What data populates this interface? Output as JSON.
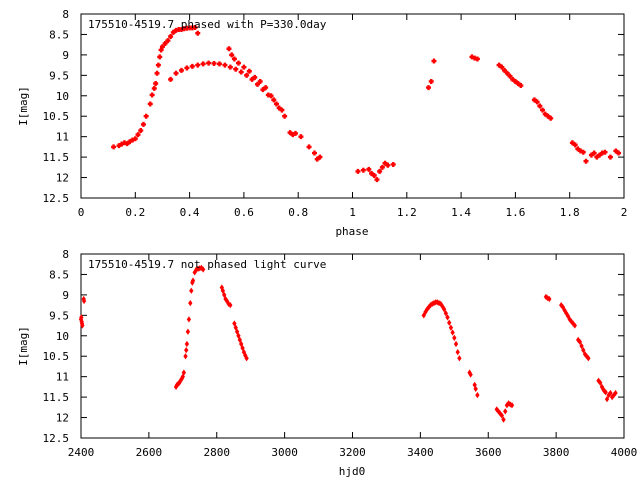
{
  "chart_data": [
    {
      "type": "scatter",
      "title": "175510-4519.7 phased with P=330.0day",
      "xlabel": "phase",
      "ylabel": "I[mag]",
      "xlim": [
        0,
        2
      ],
      "ylim": [
        8,
        12.5
      ],
      "y_inverted": true,
      "grid": false,
      "marker_color": "#ff0000",
      "marker_shape": "plus-dot",
      "x_ticks": [
        "0",
        "0.2",
        "0.4",
        "0.6",
        "0.8",
        "1",
        "1.2",
        "1.4",
        "1.6",
        "1.8",
        "2"
      ],
      "y_ticks": [
        "8",
        "8.5",
        "9",
        "9.5",
        "10",
        "10.5",
        "11",
        "11.5",
        "12",
        "12.5"
      ],
      "series": [
        {
          "points": [
            [
              0.12,
              11.25
            ],
            [
              0.14,
              11.22
            ],
            [
              0.15,
              11.18
            ],
            [
              0.16,
              11.15
            ],
            [
              0.17,
              11.17
            ],
            [
              0.18,
              11.12
            ],
            [
              0.19,
              11.08
            ],
            [
              0.2,
              11.05
            ],
            [
              0.21,
              10.95
            ],
            [
              0.22,
              10.85
            ],
            [
              0.23,
              10.7
            ],
            [
              0.24,
              10.5
            ],
            [
              0.255,
              10.2
            ],
            [
              0.262,
              9.98
            ],
            [
              0.27,
              9.82
            ],
            [
              0.275,
              9.7
            ],
            [
              0.28,
              9.45
            ],
            [
              0.285,
              9.25
            ],
            [
              0.29,
              9.05
            ],
            [
              0.295,
              8.88
            ],
            [
              0.3,
              8.8
            ],
            [
              0.31,
              8.72
            ],
            [
              0.32,
              8.65
            ],
            [
              0.33,
              8.55
            ],
            [
              0.34,
              8.45
            ],
            [
              0.35,
              8.4
            ],
            [
              0.36,
              8.38
            ],
            [
              0.37,
              8.38
            ],
            [
              0.38,
              8.36
            ],
            [
              0.39,
              8.35
            ],
            [
              0.4,
              8.34
            ],
            [
              0.41,
              8.34
            ],
            [
              0.42,
              8.33
            ],
            [
              0.43,
              8.47
            ],
            [
              0.33,
              9.6
            ],
            [
              0.35,
              9.45
            ],
            [
              0.37,
              9.38
            ],
            [
              0.39,
              9.32
            ],
            [
              0.41,
              9.28
            ],
            [
              0.43,
              9.25
            ],
            [
              0.45,
              9.22
            ],
            [
              0.47,
              9.2
            ],
            [
              0.49,
              9.21
            ],
            [
              0.51,
              9.22
            ],
            [
              0.53,
              9.25
            ],
            [
              0.55,
              9.3
            ],
            [
              0.57,
              9.35
            ],
            [
              0.59,
              9.42
            ],
            [
              0.61,
              9.5
            ],
            [
              0.63,
              9.6
            ],
            [
              0.65,
              9.72
            ],
            [
              0.67,
              9.85
            ],
            [
              0.69,
              9.98
            ],
            [
              0.71,
              10.1
            ],
            [
              0.73,
              10.3
            ],
            [
              0.75,
              10.5
            ],
            [
              0.545,
              8.85
            ],
            [
              0.555,
              9.0
            ],
            [
              0.565,
              9.1
            ],
            [
              0.58,
              9.2
            ],
            [
              0.6,
              9.3
            ],
            [
              0.62,
              9.4
            ],
            [
              0.64,
              9.55
            ],
            [
              0.66,
              9.65
            ],
            [
              0.68,
              9.8
            ],
            [
              0.7,
              10.0
            ],
            [
              0.72,
              10.2
            ],
            [
              0.74,
              10.35
            ],
            [
              0.77,
              10.9
            ],
            [
              0.78,
              10.95
            ],
            [
              0.79,
              10.92
            ],
            [
              0.81,
              11.0
            ],
            [
              0.84,
              11.25
            ],
            [
              0.86,
              11.4
            ],
            [
              0.87,
              11.55
            ],
            [
              0.88,
              11.5
            ],
            [
              1.02,
              11.85
            ],
            [
              1.04,
              11.82
            ],
            [
              1.06,
              11.8
            ],
            [
              1.07,
              11.9
            ],
            [
              1.08,
              11.95
            ],
            [
              1.09,
              12.05
            ],
            [
              1.1,
              11.85
            ],
            [
              1.11,
              11.75
            ],
            [
              1.12,
              11.65
            ],
            [
              1.13,
              11.7
            ],
            [
              1.15,
              11.68
            ],
            [
              1.28,
              9.8
            ],
            [
              1.29,
              9.65
            ],
            [
              1.3,
              9.15
            ],
            [
              1.44,
              9.05
            ],
            [
              1.45,
              9.08
            ],
            [
              1.46,
              9.1
            ],
            [
              1.54,
              9.25
            ],
            [
              1.55,
              9.3
            ],
            [
              1.56,
              9.38
            ],
            [
              1.57,
              9.45
            ],
            [
              1.58,
              9.52
            ],
            [
              1.59,
              9.6
            ],
            [
              1.6,
              9.65
            ],
            [
              1.61,
              9.7
            ],
            [
              1.62,
              9.75
            ],
            [
              1.67,
              10.1
            ],
            [
              1.68,
              10.15
            ],
            [
              1.69,
              10.25
            ],
            [
              1.7,
              10.35
            ],
            [
              1.71,
              10.45
            ],
            [
              1.72,
              10.5
            ],
            [
              1.73,
              10.55
            ],
            [
              1.81,
              11.15
            ],
            [
              1.82,
              11.2
            ],
            [
              1.83,
              11.3
            ],
            [
              1.84,
              11.35
            ],
            [
              1.85,
              11.38
            ],
            [
              1.86,
              11.6
            ],
            [
              1.88,
              11.45
            ],
            [
              1.89,
              11.4
            ],
            [
              1.9,
              11.5
            ],
            [
              1.91,
              11.45
            ],
            [
              1.92,
              11.4
            ],
            [
              1.93,
              11.38
            ],
            [
              1.95,
              11.5
            ],
            [
              1.97,
              11.35
            ],
            [
              1.98,
              11.4
            ]
          ]
        }
      ]
    },
    {
      "type": "scatter",
      "title": "175510-4519.7 not phased light curve",
      "xlabel": "hjd0",
      "ylabel": "I[mag]",
      "xlim": [
        2400,
        4000
      ],
      "ylim": [
        8,
        12.5
      ],
      "y_inverted": true,
      "grid": false,
      "marker_color": "#ff0000",
      "marker_shape": "diamond",
      "x_ticks": [
        "2400",
        "2600",
        "2800",
        "3000",
        "3200",
        "3400",
        "3600",
        "3800",
        "4000"
      ],
      "y_ticks": [
        "8",
        "8.5",
        "9",
        "9.5",
        "10",
        "10.5",
        "11",
        "11.5",
        "12",
        "12.5"
      ],
      "series": [
        {
          "points": [
            [
              2400,
              9.6
            ],
            [
              2401,
              9.55
            ],
            [
              2402,
              9.65
            ],
            [
              2403,
              9.7
            ],
            [
              2404,
              9.75
            ],
            [
              2408,
              9.1
            ],
            [
              2409,
              9.15
            ],
            [
              2680,
              11.25
            ],
            [
              2683,
              11.2
            ],
            [
              2686,
              11.18
            ],
            [
              2690,
              11.15
            ],
            [
              2693,
              11.1
            ],
            [
              2697,
              11.05
            ],
            [
              2700,
              11.0
            ],
            [
              2703,
              10.9
            ],
            [
              2708,
              10.5
            ],
            [
              2710,
              10.35
            ],
            [
              2712,
              10.2
            ],
            [
              2715,
              9.9
            ],
            [
              2718,
              9.6
            ],
            [
              2722,
              9.2
            ],
            [
              2725,
              8.9
            ],
            [
              2728,
              8.7
            ],
            [
              2730,
              8.65
            ],
            [
              2735,
              8.45
            ],
            [
              2740,
              8.38
            ],
            [
              2745,
              8.36
            ],
            [
              2750,
              8.35
            ],
            [
              2755,
              8.34
            ],
            [
              2760,
              8.38
            ],
            [
              2815,
              8.82
            ],
            [
              2818,
              8.9
            ],
            [
              2822,
              9.0
            ],
            [
              2826,
              9.1
            ],
            [
              2830,
              9.15
            ],
            [
              2835,
              9.22
            ],
            [
              2840,
              9.25
            ],
            [
              2852,
              9.7
            ],
            [
              2856,
              9.8
            ],
            [
              2860,
              9.9
            ],
            [
              2864,
              10.0
            ],
            [
              2868,
              10.1
            ],
            [
              2872,
              10.2
            ],
            [
              2876,
              10.3
            ],
            [
              2880,
              10.4
            ],
            [
              2884,
              10.48
            ],
            [
              2888,
              10.55
            ],
            [
              3410,
              9.5
            ],
            [
              3415,
              9.42
            ],
            [
              3420,
              9.35
            ],
            [
              3425,
              9.3
            ],
            [
              3430,
              9.25
            ],
            [
              3435,
              9.22
            ],
            [
              3440,
              9.2
            ],
            [
              3445,
              9.18
            ],
            [
              3450,
              9.18
            ],
            [
              3455,
              9.2
            ],
            [
              3460,
              9.22
            ],
            [
              3465,
              9.28
            ],
            [
              3470,
              9.35
            ],
            [
              3475,
              9.45
            ],
            [
              3480,
              9.55
            ],
            [
              3485,
              9.68
            ],
            [
              3490,
              9.8
            ],
            [
              3495,
              9.92
            ],
            [
              3500,
              10.05
            ],
            [
              3505,
              10.2
            ],
            [
              3510,
              10.4
            ],
            [
              3515,
              10.55
            ],
            [
              3545,
              10.9
            ],
            [
              3548,
              10.95
            ],
            [
              3560,
              11.2
            ],
            [
              3563,
              11.3
            ],
            [
              3568,
              11.45
            ],
            [
              3625,
              11.8
            ],
            [
              3630,
              11.85
            ],
            [
              3635,
              11.9
            ],
            [
              3640,
              11.95
            ],
            [
              3645,
              12.05
            ],
            [
              3650,
              11.85
            ],
            [
              3655,
              11.7
            ],
            [
              3660,
              11.65
            ],
            [
              3665,
              11.68
            ],
            [
              3670,
              11.7
            ],
            [
              3770,
              9.05
            ],
            [
              3775,
              9.08
            ],
            [
              3780,
              9.1
            ],
            [
              3815,
              9.25
            ],
            [
              3820,
              9.3
            ],
            [
              3825,
              9.38
            ],
            [
              3830,
              9.45
            ],
            [
              3835,
              9.52
            ],
            [
              3840,
              9.6
            ],
            [
              3845,
              9.65
            ],
            [
              3850,
              9.7
            ],
            [
              3855,
              9.75
            ],
            [
              3865,
              10.1
            ],
            [
              3870,
              10.15
            ],
            [
              3875,
              10.25
            ],
            [
              3880,
              10.35
            ],
            [
              3885,
              10.45
            ],
            [
              3890,
              10.5
            ],
            [
              3895,
              10.55
            ],
            [
              3925,
              11.1
            ],
            [
              3930,
              11.15
            ],
            [
              3935,
              11.25
            ],
            [
              3938,
              11.3
            ],
            [
              3942,
              11.35
            ],
            [
              3946,
              11.38
            ],
            [
              3950,
              11.55
            ],
            [
              3955,
              11.45
            ],
            [
              3960,
              11.4
            ],
            [
              3965,
              11.5
            ],
            [
              3970,
              11.45
            ],
            [
              3975,
              11.4
            ]
          ]
        }
      ]
    }
  ]
}
